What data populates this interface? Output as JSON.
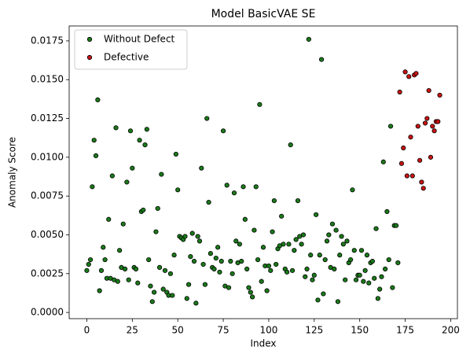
{
  "chart_data": {
    "type": "scatter",
    "title": "Model BasicVAE SE",
    "xlabel": "Index",
    "ylabel": "Anomaly Score",
    "xlim": [
      -9.7,
      203.7
    ],
    "ylim": [
      -0.0004,
      0.01846
    ],
    "xticks": [
      0,
      25,
      50,
      75,
      100,
      125,
      150,
      175,
      200
    ],
    "yticks": [
      {
        "value": 0,
        "label": "0.0000"
      },
      {
        "value": 0.0025,
        "label": "0.0025"
      },
      {
        "value": 0.005,
        "label": "0.0050"
      },
      {
        "value": 0.0075,
        "label": "0.0075"
      },
      {
        "value": 0.01,
        "label": "0.0100"
      },
      {
        "value": 0.0125,
        "label": "0.0125"
      },
      {
        "value": 0.015,
        "label": "0.0150"
      },
      {
        "value": 0.0175,
        "label": "0.0175"
      }
    ],
    "legend": "upper left",
    "series": [
      {
        "name": "Without Defect",
        "color": "#1a7a1a",
        "x": [
          0,
          1,
          2,
          3,
          4,
          5,
          6,
          7,
          8,
          9,
          10,
          11,
          12,
          13,
          14,
          15,
          16,
          17,
          18,
          19,
          20,
          21,
          22,
          23,
          24,
          25,
          26,
          27,
          28,
          29,
          30,
          31,
          32,
          33,
          34,
          35,
          36,
          37,
          38,
          39,
          40,
          41,
          42,
          43,
          44,
          45,
          46,
          47,
          48,
          49,
          50,
          51,
          52,
          53,
          54,
          55,
          56,
          57,
          58,
          59,
          60,
          61,
          62,
          63,
          64,
          65,
          66,
          67,
          68,
          69,
          70,
          71,
          72,
          73,
          74,
          75,
          76,
          77,
          78,
          79,
          80,
          81,
          82,
          83,
          84,
          85,
          86,
          87,
          88,
          89,
          90,
          91,
          92,
          93,
          94,
          95,
          96,
          97,
          98,
          99,
          100,
          101,
          102,
          103,
          104,
          105,
          106,
          107,
          108,
          109,
          110,
          111,
          112,
          113,
          114,
          115,
          116,
          117,
          118,
          119,
          120,
          121,
          122,
          123,
          124,
          125,
          126,
          127,
          128,
          129,
          130,
          131,
          132,
          133,
          134,
          135,
          136,
          137,
          138,
          139,
          140,
          141,
          142,
          143,
          144,
          145,
          146,
          147,
          148,
          149,
          150,
          151,
          152,
          153,
          154,
          155,
          156,
          157,
          158,
          159,
          160,
          161,
          162,
          163,
          164,
          165,
          166,
          167,
          168,
          169,
          170,
          171
        ],
        "values": [
          0.0027,
          0.0031,
          0.0034,
          0.0081,
          0.0111,
          0.0101,
          0.0137,
          0.0014,
          0.0027,
          0.0042,
          0.0034,
          0.0022,
          0.006,
          0.0022,
          0.0088,
          0.0021,
          0.0119,
          0.002,
          0.004,
          0.0029,
          0.0057,
          0.0028,
          0.0084,
          0.0021,
          0.0117,
          0.0093,
          0.0029,
          0.0028,
          0.0019,
          0.0111,
          0.0065,
          0.0066,
          0.0108,
          0.0118,
          0.0034,
          0.0017,
          0.0007,
          0.0013,
          0.0052,
          0.0067,
          0.0029,
          0.0089,
          0.0015,
          0.0027,
          0.0013,
          0.0011,
          0.0025,
          0.0011,
          0.0037,
          0.0102,
          0.0079,
          0.0049,
          0.0048,
          0.0047,
          0.0049,
          0.0009,
          0.0018,
          0.0036,
          0.0051,
          0.0033,
          0.0006,
          0.0049,
          0.0046,
          0.0093,
          0.0031,
          0.0018,
          0.0125,
          0.0071,
          0.0038,
          0.0029,
          0.0028,
          0.0035,
          0.0042,
          0.0026,
          0.0033,
          0.0117,
          0.0017,
          0.0082,
          0.0016,
          0.0033,
          0.0025,
          0.0077,
          0.0046,
          0.0032,
          0.0044,
          0.0033,
          0.0081,
          0.006,
          0.0028,
          0.0016,
          0.0013,
          0.001,
          0.0053,
          0.0081,
          0.0034,
          0.0134,
          0.002,
          0.0042,
          0.003,
          0.0014,
          0.003,
          0.0027,
          0.0052,
          0.0072,
          0.0031,
          0.0041,
          0.0043,
          0.0062,
          0.0044,
          0.0028,
          0.0026,
          0.0044,
          0.0108,
          0.0027,
          0.004,
          0.0047,
          0.0072,
          0.0049,
          0.0044,
          0.005,
          0.0023,
          0.0028,
          0.0176,
          0.0037,
          0.0021,
          0.0024,
          0.0063,
          0.0008,
          0.0037,
          0.0163,
          0.0012,
          0.0034,
          0.0046,
          0.005,
          0.0029,
          0.0057,
          0.0028,
          0.0053,
          0.0007,
          0.0037,
          0.0049,
          0.0044,
          0.0021,
          0.0046,
          0.0032,
          0.0034,
          0.0079,
          0.004,
          0.0021,
          0.0024,
          0.0024,
          0.004,
          0.002,
          0.0027,
          0.0037,
          0.0019,
          0.0032,
          0.0033,
          0.0022,
          0.0054,
          0.0009,
          0.0015,
          0.0023,
          0.0097,
          0.0028,
          0.0065,
          0.0034,
          0.012,
          0.0016,
          0.0056,
          0.0056,
          0.0032
        ]
      },
      {
        "name": "Defective",
        "color": "#c81414",
        "x": [
          172,
          173,
          174,
          175,
          176,
          177,
          178,
          179,
          180,
          181,
          182,
          183,
          184,
          185,
          186,
          187,
          188,
          189,
          190,
          191,
          192,
          193,
          194
        ],
        "values": [
          0.0142,
          0.0096,
          0.0106,
          0.0155,
          0.0088,
          0.0152,
          0.0113,
          0.0088,
          0.0153,
          0.0154,
          0.012,
          0.0098,
          0.0084,
          0.008,
          0.0122,
          0.0125,
          0.0143,
          0.01,
          0.012,
          0.0117,
          0.0123,
          0.0123,
          0.014
        ]
      }
    ]
  }
}
